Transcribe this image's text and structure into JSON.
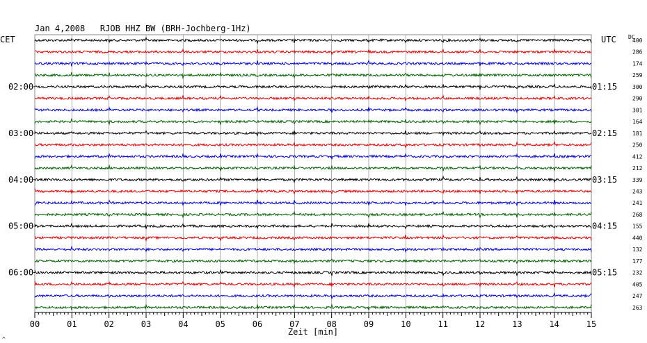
{
  "header": {
    "title": "Jan 4,2008   RJOB HHZ BW (BRH-Jochberg-1Hz)",
    "left_tz": "CET",
    "right_tz": "UTC",
    "dc_label": "DC"
  },
  "chart_data": {
    "type": "line",
    "title": "Jan 4,2008   RJOB HHZ BW (BRH-Jochberg-1Hz)",
    "xlabel": "Zeit [min]",
    "ylabel": "",
    "xlim": [
      0,
      15
    ],
    "x_ticks": [
      "00",
      "01",
      "02",
      "03",
      "04",
      "05",
      "06",
      "07",
      "08",
      "09",
      "10",
      "11",
      "12",
      "13",
      "14",
      "15"
    ],
    "grid": true,
    "trace_colors": [
      "#000000",
      "#e00000",
      "#0000d0",
      "#006000"
    ],
    "left_hour_labels": [
      {
        "label": "02:00",
        "row": 4
      },
      {
        "label": "03:00",
        "row": 8
      },
      {
        "label": "04:00",
        "row": 12
      },
      {
        "label": "05:00",
        "row": 16
      },
      {
        "label": "06:00",
        "row": 20
      }
    ],
    "right_hour_labels": [
      {
        "label": "01:15",
        "row": 4
      },
      {
        "label": "02:15",
        "row": 8
      },
      {
        "label": "03:15",
        "row": 12
      },
      {
        "label": "04:15",
        "row": 16
      },
      {
        "label": "05:15",
        "row": 20
      }
    ],
    "dc_offsets": [
      400,
      286,
      174,
      259,
      300,
      290,
      301,
      164,
      181,
      250,
      412,
      212,
      339,
      243,
      241,
      268,
      155,
      440,
      132,
      177,
      232,
      405,
      247,
      263
    ]
  },
  "footer": {
    "corner_mark": "^"
  }
}
